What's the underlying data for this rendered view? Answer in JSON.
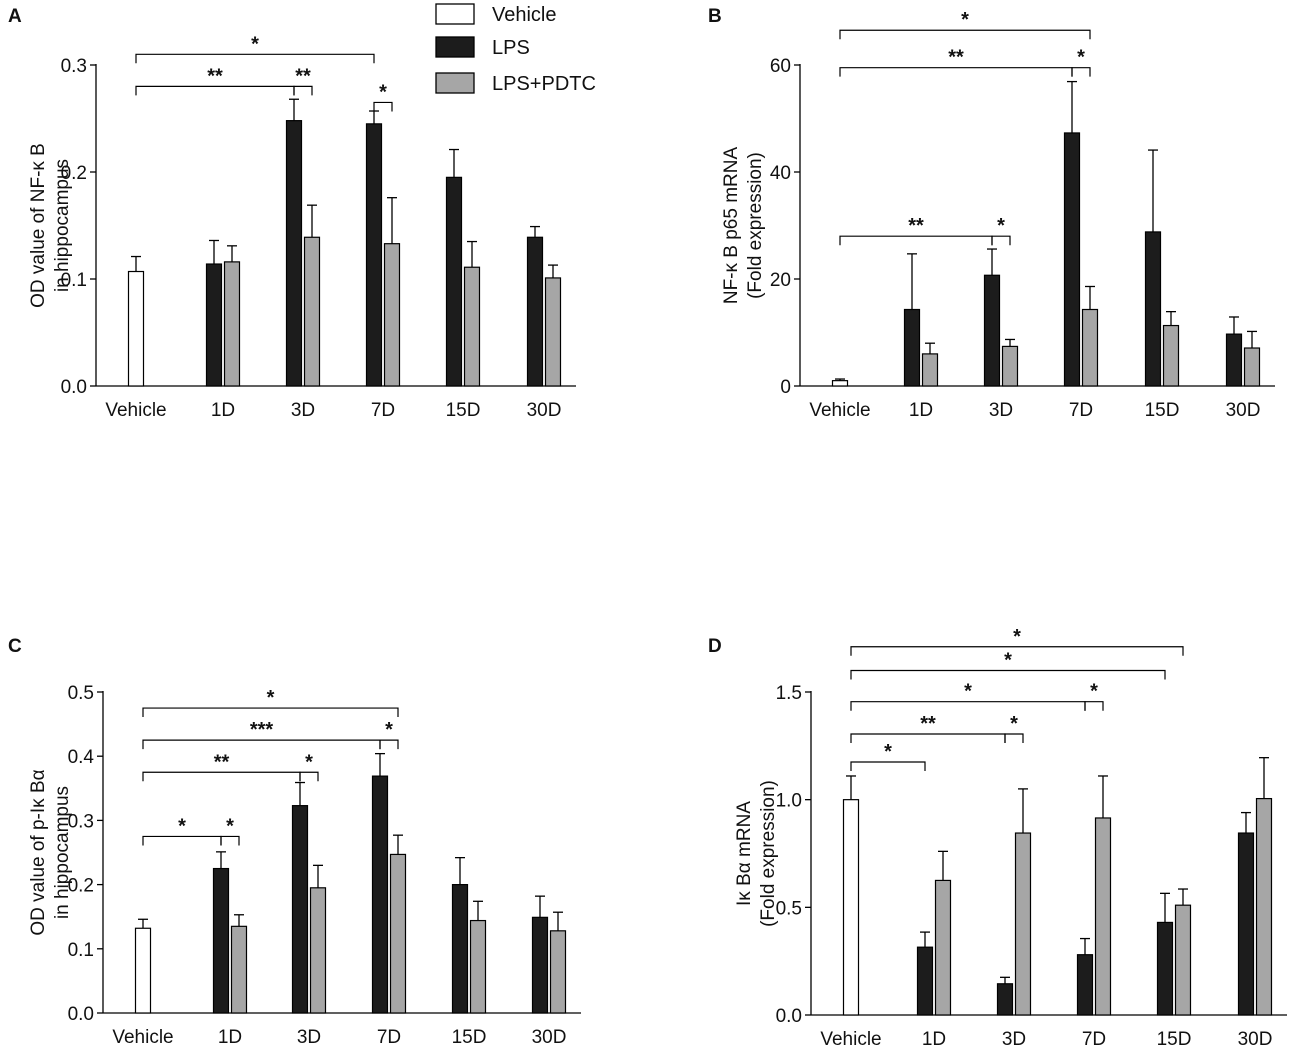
{
  "colors": {
    "vehicle": "#ffffff",
    "lps": "#1c1c1c",
    "pdtc": "#a6a6a6",
    "stroke": "#000000"
  },
  "legend": [
    {
      "name": "Vehicle",
      "color": "#ffffff"
    },
    {
      "name": "LPS",
      "color": "#1c1c1c"
    },
    {
      "name": "LPS+PDTC",
      "color": "#a6a6a6"
    }
  ],
  "chart_data": [
    {
      "panel": "A",
      "type": "bar",
      "categories": [
        "Vehicle",
        "1D",
        "3D",
        "7D",
        "15D",
        "30D"
      ],
      "ylabel": [
        "OD value of NF-κ B",
        "in hippocampus"
      ],
      "ylim": [
        0,
        0.3
      ],
      "yticks": [
        0.0,
        0.1,
        0.2,
        0.3
      ],
      "ytick_labels": [
        "0.0",
        "0.1",
        "0.2",
        "0.3"
      ],
      "series": [
        {
          "name": "Vehicle",
          "values": [
            0.107,
            null,
            null,
            null,
            null,
            null
          ],
          "errors": [
            0.014,
            null,
            null,
            null,
            null,
            null
          ]
        },
        {
          "name": "LPS",
          "values": [
            null,
            0.114,
            0.248,
            0.245,
            0.195,
            0.139
          ],
          "errors": [
            null,
            0.022,
            0.02,
            0.012,
            0.026,
            0.01
          ]
        },
        {
          "name": "LPS+PDTC",
          "values": [
            null,
            0.116,
            0.139,
            0.133,
            0.111,
            0.101
          ],
          "errors": [
            null,
            0.015,
            0.03,
            0.043,
            0.024,
            0.012
          ]
        }
      ],
      "significance": [
        {
          "from": 0,
          "to": 3,
          "fromSeries": "Vehicle",
          "toSeries": "LPS",
          "level": 0.31,
          "label": "*"
        },
        {
          "from": 0,
          "to": 2,
          "fromSeries": "Vehicle",
          "toSeries": "LPS",
          "level": 0.28,
          "label": "**"
        },
        {
          "from": 2,
          "to": 2,
          "fromSeries": "LPS",
          "toSeries": "LPS+PDTC",
          "level": 0.28,
          "label": "**"
        },
        {
          "from": 3,
          "to": 3,
          "fromSeries": "LPS",
          "toSeries": "LPS+PDTC",
          "level": 0.265,
          "label": "*"
        }
      ]
    },
    {
      "panel": "B",
      "type": "bar",
      "categories": [
        "Vehicle",
        "1D",
        "3D",
        "7D",
        "15D",
        "30D"
      ],
      "ylabel": [
        "NF-κ B p65 mRNA",
        "(Fold expression)"
      ],
      "ylim": [
        0,
        60
      ],
      "yticks": [
        0,
        20,
        40,
        60
      ],
      "ytick_labels": [
        "0",
        "20",
        "40",
        "60"
      ],
      "series": [
        {
          "name": "Vehicle",
          "values": [
            1,
            null,
            null,
            null,
            null,
            null
          ],
          "errors": [
            0.3,
            null,
            null,
            null,
            null,
            null
          ]
        },
        {
          "name": "LPS",
          "values": [
            null,
            14.3,
            20.7,
            47.3,
            28.8,
            9.7
          ],
          "errors": [
            null,
            10.4,
            4.9,
            9.6,
            15.3,
            3.2
          ]
        },
        {
          "name": "LPS+PDTC",
          "values": [
            null,
            6.0,
            7.4,
            14.3,
            11.3,
            7.1
          ],
          "errors": [
            null,
            2.0,
            1.3,
            4.3,
            2.6,
            3.1
          ]
        }
      ],
      "significance": [
        {
          "from": 0,
          "to": 3,
          "fromSeries": "Vehicle",
          "toSeries": "LPS+PDTC",
          "level": 66.5,
          "label": "*"
        },
        {
          "from": 0,
          "to": 3,
          "fromSeries": "Vehicle",
          "toSeries": "LPS",
          "level": 59.5,
          "label": "**"
        },
        {
          "from": 3,
          "to": 3,
          "fromSeries": "LPS",
          "toSeries": "LPS+PDTC",
          "level": 59.5,
          "label": "*"
        },
        {
          "from": 0,
          "to": 2,
          "fromSeries": "Vehicle",
          "toSeries": "LPS",
          "level": 28,
          "label": "**"
        },
        {
          "from": 2,
          "to": 2,
          "fromSeries": "LPS",
          "toSeries": "LPS+PDTC",
          "level": 28,
          "label": "*"
        }
      ]
    },
    {
      "panel": "C",
      "type": "bar",
      "categories": [
        "Vehicle",
        "1D",
        "3D",
        "7D",
        "15D",
        "30D"
      ],
      "ylabel": [
        "OD value of p-Iκ Bα",
        "in hippocampus"
      ],
      "ylim": [
        0,
        0.5
      ],
      "yticks": [
        0.0,
        0.1,
        0.2,
        0.3,
        0.4,
        0.5
      ],
      "ytick_labels": [
        "0.0",
        "0.1",
        "0.2",
        "0.3",
        "0.4",
        "0.5"
      ],
      "series": [
        {
          "name": "Vehicle",
          "values": [
            0.132,
            null,
            null,
            null,
            null,
            null
          ],
          "errors": [
            0.014,
            null,
            null,
            null,
            null,
            null
          ]
        },
        {
          "name": "LPS",
          "values": [
            null,
            0.225,
            0.323,
            0.369,
            0.2,
            0.149
          ],
          "errors": [
            null,
            0.026,
            0.036,
            0.035,
            0.042,
            0.033
          ]
        },
        {
          "name": "LPS+PDTC",
          "values": [
            null,
            0.135,
            0.195,
            0.247,
            0.144,
            0.128
          ],
          "errors": [
            null,
            0.018,
            0.035,
            0.03,
            0.03,
            0.029
          ]
        }
      ],
      "significance": [
        {
          "from": 0,
          "to": 3,
          "fromSeries": "Vehicle",
          "toSeries": "LPS+PDTC",
          "level": 0.475,
          "label": "*"
        },
        {
          "from": 0,
          "to": 3,
          "fromSeries": "Vehicle",
          "toSeries": "LPS",
          "level": 0.425,
          "label": "***"
        },
        {
          "from": 3,
          "to": 3,
          "fromSeries": "LPS",
          "toSeries": "LPS+PDTC",
          "level": 0.425,
          "label": "*"
        },
        {
          "from": 0,
          "to": 2,
          "fromSeries": "Vehicle",
          "toSeries": "LPS",
          "level": 0.375,
          "label": "**"
        },
        {
          "from": 2,
          "to": 2,
          "fromSeries": "LPS",
          "toSeries": "LPS+PDTC",
          "level": 0.375,
          "label": "*"
        },
        {
          "from": 0,
          "to": 1,
          "fromSeries": "Vehicle",
          "toSeries": "LPS",
          "level": 0.275,
          "label": "*"
        },
        {
          "from": 1,
          "to": 1,
          "fromSeries": "LPS",
          "toSeries": "LPS+PDTC",
          "level": 0.275,
          "label": "*"
        }
      ]
    },
    {
      "panel": "D",
      "type": "bar",
      "categories": [
        "Vehicle",
        "1D",
        "3D",
        "7D",
        "15D",
        "30D"
      ],
      "ylabel": [
        "Iκ Bα mRNA",
        "(Fold expression)"
      ],
      "ylim": [
        0,
        1.5
      ],
      "yticks": [
        0.0,
        0.5,
        1.0,
        1.5
      ],
      "ytick_labels": [
        "0.0",
        "0.5",
        "1.0",
        "1.5"
      ],
      "series": [
        {
          "name": "Vehicle",
          "values": [
            1.0,
            null,
            null,
            null,
            null,
            null
          ],
          "errors": [
            0.11,
            null,
            null,
            null,
            null,
            null
          ]
        },
        {
          "name": "LPS",
          "values": [
            null,
            0.315,
            0.145,
            0.28,
            0.43,
            0.845
          ],
          "errors": [
            null,
            0.07,
            0.03,
            0.075,
            0.135,
            0.095
          ]
        },
        {
          "name": "LPS+PDTC",
          "values": [
            null,
            0.625,
            0.845,
            0.915,
            0.51,
            1.005
          ],
          "errors": [
            null,
            0.135,
            0.205,
            0.195,
            0.075,
            0.19
          ]
        }
      ],
      "significance": [
        {
          "from": 0,
          "to": 4,
          "fromSeries": "Vehicle",
          "toSeries": "LPS+PDTC",
          "level": 1.71,
          "label": "*"
        },
        {
          "from": 0,
          "to": 4,
          "fromSeries": "Vehicle",
          "toSeries": "LPS",
          "level": 1.6,
          "label": "*"
        },
        {
          "from": 0,
          "to": 3,
          "fromSeries": "Vehicle",
          "toSeries": "LPS",
          "level": 1.455,
          "label": "*"
        },
        {
          "from": 3,
          "to": 3,
          "fromSeries": "LPS",
          "toSeries": "LPS+PDTC",
          "level": 1.455,
          "label": "*"
        },
        {
          "from": 0,
          "to": 2,
          "fromSeries": "Vehicle",
          "toSeries": "LPS",
          "level": 1.305,
          "label": "**"
        },
        {
          "from": 2,
          "to": 2,
          "fromSeries": "LPS",
          "toSeries": "LPS+PDTC",
          "level": 1.305,
          "label": "*"
        },
        {
          "from": 0,
          "to": 1,
          "fromSeries": "Vehicle",
          "toSeries": "LPS",
          "level": 1.175,
          "label": "*"
        }
      ]
    }
  ]
}
